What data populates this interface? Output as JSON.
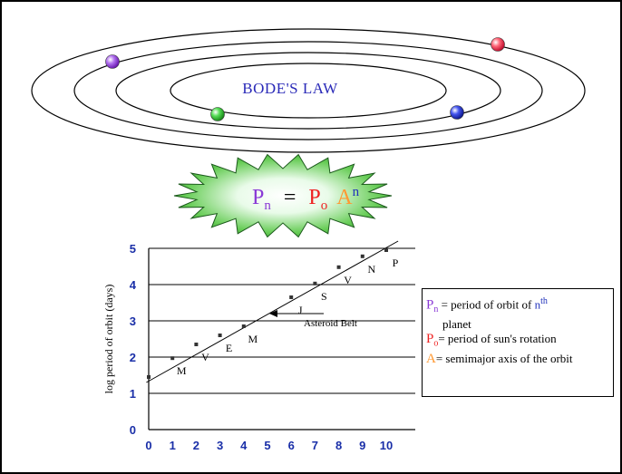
{
  "colors": {
    "purple": "#8a3ad6",
    "red": "#ee2222",
    "orange": "#ff9933",
    "blue": "#2233bb",
    "green": "#33bb33",
    "title_blue": "#2a2ab8",
    "axis_blue": "#1a2fa8"
  },
  "orbit_diagram": {
    "title": "BODE'S LAW"
  },
  "formula": {
    "lhs_symbol": "P",
    "lhs_subscript": "n",
    "equals": "=",
    "p0_symbol": "P",
    "p0_subscript": "o",
    "a_symbol": "A",
    "a_superscript": "n"
  },
  "chart_data": {
    "type": "scatter",
    "ylabel": "log period of orbit (days)",
    "xlabel": "",
    "xlim": [
      0,
      11
    ],
    "ylim": [
      0,
      5
    ],
    "x_ticks": [
      "0",
      "1",
      "2",
      "3",
      "4",
      "5",
      "6",
      "7",
      "8",
      "9",
      "10"
    ],
    "y_ticks": [
      "0",
      "1",
      "2",
      "3",
      "4",
      "5"
    ],
    "grid": "horizontal",
    "points": [
      {
        "x": 0,
        "y": 1.45,
        "label": ""
      },
      {
        "x": 1,
        "y": 1.97,
        "label": "M"
      },
      {
        "x": 2,
        "y": 2.35,
        "label": "V"
      },
      {
        "x": 3,
        "y": 2.6,
        "label": "E"
      },
      {
        "x": 4,
        "y": 2.85,
        "label": "M"
      },
      {
        "x": 6,
        "y": 3.65,
        "label": "J"
      },
      {
        "x": 7,
        "y": 4.03,
        "label": "S"
      },
      {
        "x": 8,
        "y": 4.48,
        "label": "V"
      },
      {
        "x": 9,
        "y": 4.78,
        "label": "N"
      },
      {
        "x": 10,
        "y": 4.95,
        "label": "P"
      }
    ],
    "fit_line": {
      "x": [
        -0.1,
        10.5
      ],
      "y": [
        1.3,
        5.2
      ]
    },
    "annotations": [
      {
        "text": "Asteroid Belt",
        "points_to_x": 5,
        "points_to_y": 3.2
      }
    ]
  },
  "legend": {
    "line1_symbol": "P",
    "line1_subscript": "n",
    "line1_text": "= period of orbit of",
    "line1_n": "n",
    "line1_sup": "th",
    "line2_text": "planet",
    "line3_symbol": "P",
    "line3_subscript": "o",
    "line3_text": "= period of sun's rotation",
    "line4_symbol": "A",
    "line4_text": "= semimajor axis of the orbit"
  }
}
